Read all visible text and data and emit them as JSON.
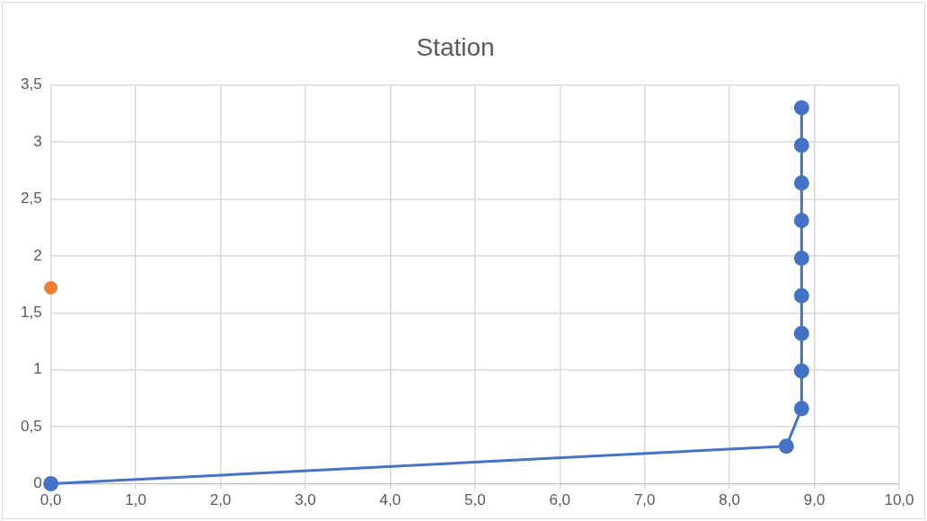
{
  "chart_data": {
    "type": "scatter",
    "title": "Station",
    "series": [
      {
        "type": "line",
        "color": "#4472c4",
        "x": [
          0,
          8.67,
          8.85,
          8.85,
          8.85,
          8.85,
          8.85,
          8.85,
          8.85,
          8.85,
          8.85
        ],
        "values": [
          0,
          0.33,
          0.66,
          0.99,
          1.32,
          1.65,
          1.98,
          2.31,
          2.64,
          2.97,
          3.3
        ]
      },
      {
        "type": "scatter",
        "color": "#ed7d31",
        "x": [
          0
        ],
        "values": [
          1.72
        ]
      }
    ],
    "xlim": [
      0,
      10
    ],
    "xticks": [
      {
        "value": 0,
        "label": "0,0"
      },
      {
        "value": 1,
        "label": "1,0"
      },
      {
        "value": 2,
        "label": "2,0"
      },
      {
        "value": 3,
        "label": "3,0"
      },
      {
        "value": 4,
        "label": "4,0"
      },
      {
        "value": 5,
        "label": "5,0"
      },
      {
        "value": 6,
        "label": "6,0"
      },
      {
        "value": 7,
        "label": "7,0"
      },
      {
        "value": 8,
        "label": "8,0"
      },
      {
        "value": 9,
        "label": "9,0"
      },
      {
        "value": 10,
        "label": "10,0"
      }
    ],
    "ylim": [
      0,
      3.5
    ],
    "yticks": [
      0,
      {
        "value": 0.5,
        "label": "0,5"
      },
      1,
      {
        "value": 1.5,
        "label": "1,5"
      },
      2,
      {
        "value": 2.5,
        "label": "2,5"
      },
      3,
      {
        "value": 3.5,
        "label": "3,5"
      }
    ],
    "grid": true,
    "marker": "circle",
    "legend": false
  }
}
